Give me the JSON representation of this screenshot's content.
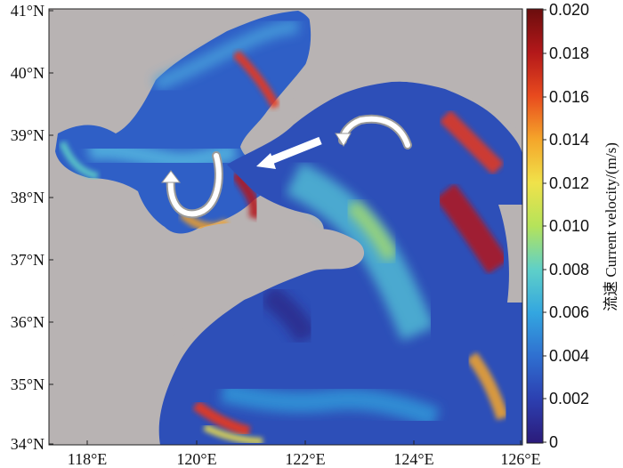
{
  "map": {
    "lat_ticks": [
      "41°N",
      "40°N",
      "39°N",
      "38°N",
      "37°N",
      "36°N",
      "35°N",
      "34°N"
    ],
    "lon_ticks": [
      "118°E",
      "120°E",
      "122°E",
      "124°E",
      "126°E"
    ],
    "land_color": "#b8b3b3",
    "flow_arrow_color": "#ffffff",
    "arrow_outline_color": "#9a9a9a"
  },
  "colorbar": {
    "title": "流速 Current velocity/(m/s)",
    "ticks": [
      "0.020",
      "0.018",
      "0.016",
      "0.014",
      "0.012",
      "0.010",
      "0.008",
      "0.006",
      "0.004",
      "0.002",
      "0"
    ],
    "range": [
      0,
      0.02
    ],
    "colormap": [
      "#2b1b7a",
      "#2c3fb0",
      "#2f6fd0",
      "#33a6e0",
      "#5fd0c8",
      "#b5e35a",
      "#f0e24a",
      "#f5a52a",
      "#e84a1e",
      "#b3181a",
      "#6b0d0d"
    ]
  }
}
